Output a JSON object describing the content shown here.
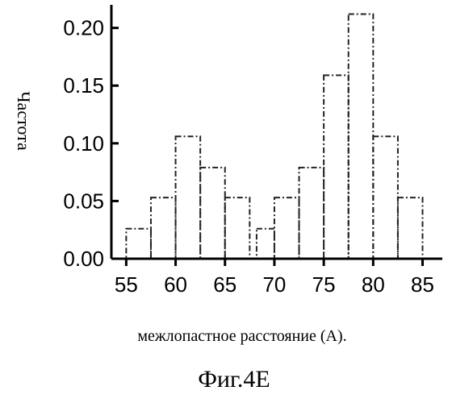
{
  "chart_data": {
    "type": "bar",
    "xlabel": "межлопастное расстояние (А).",
    "ylabel": "Частота",
    "xlim": [
      53.5,
      87
    ],
    "ylim": [
      0,
      0.22
    ],
    "x_ticks": [
      "55",
      "60",
      "65",
      "70",
      "75",
      "80",
      "85"
    ],
    "y_ticks": [
      "0.00",
      "0.05",
      "0.10",
      "0.15",
      "0.20"
    ],
    "bins": [
      {
        "x0": 55.0,
        "x1": 57.5,
        "value": 0.026
      },
      {
        "x0": 57.5,
        "x1": 60.0,
        "value": 0.053
      },
      {
        "x0": 60.0,
        "x1": 62.5,
        "value": 0.106
      },
      {
        "x0": 62.5,
        "x1": 65.0,
        "value": 0.079
      },
      {
        "x0": 65.0,
        "x1": 67.5,
        "value": 0.053
      },
      {
        "x0": 67.5,
        "x1": 70.0,
        "value": 0.0
      },
      {
        "x0": 70.0,
        "x1": 72.5,
        "value": 0.053
      },
      {
        "x0": 72.5,
        "x1": 75.0,
        "value": 0.079
      },
      {
        "x0": 75.0,
        "x1": 77.5,
        "value": 0.159
      },
      {
        "x0": 77.5,
        "x1": 80.0,
        "value": 0.212
      },
      {
        "x0": 80.0,
        "x1": 82.5,
        "value": 0.106
      },
      {
        "x0": 82.5,
        "x1": 85.0,
        "value": 0.053
      }
    ],
    "extra_step": {
      "x0": 68.2,
      "x1": 70.0,
      "value": 0.026
    },
    "grid": false,
    "caption": "Фиг.4Е"
  }
}
